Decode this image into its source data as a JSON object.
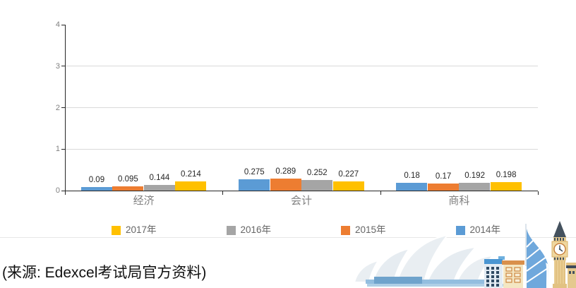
{
  "chart_data": {
    "type": "bar",
    "categories": [
      "经济",
      "会计",
      "商科"
    ],
    "series": [
      {
        "name": "2014年",
        "color": "#5B9BD5",
        "values": [
          0.09,
          0.275,
          0.18
        ],
        "labels": [
          "0.09",
          "0.275",
          "0.18"
        ]
      },
      {
        "name": "2015年",
        "color": "#ED7D31",
        "values": [
          0.095,
          0.289,
          0.17
        ],
        "labels": [
          "0.095",
          "0.289",
          "0.17"
        ]
      },
      {
        "name": "2016年",
        "color": "#A5A5A5",
        "values": [
          0.144,
          0.252,
          0.192
        ],
        "labels": [
          "0.144",
          "0.252",
          "0.192"
        ]
      },
      {
        "name": "2017年",
        "color": "#FFC000",
        "values": [
          0.214,
          0.227,
          0.198
        ],
        "labels": [
          "0.214",
          "0.227",
          "0.198"
        ]
      }
    ],
    "title": "",
    "xlabel": "",
    "ylabel": "",
    "ylim": [
      0,
      4
    ],
    "yticks": [
      0,
      1,
      2,
      3,
      4
    ],
    "grid": true,
    "data_labels": true,
    "legend_position": "bottom"
  },
  "legend": {
    "items": [
      {
        "label": "2017年",
        "color": "#FFC000"
      },
      {
        "label": "2016年",
        "color": "#A5A5A5"
      },
      {
        "label": "2015年",
        "color": "#ED7D31"
      },
      {
        "label": "2014年",
        "color": "#5B9BD5"
      }
    ]
  },
  "source_note": "(来源: Edexcel考试局官方资料)",
  "colors": {
    "axis": "#262626",
    "gridline": "#d9d9d9",
    "tick_label": "#808080",
    "category_label": "#808080",
    "data_label": "#262626",
    "legend_label": "#666666",
    "divider": "#e7e7e7"
  },
  "illustration": {
    "items": [
      "sydney-opera-house",
      "office-buildings",
      "burj-al-arab",
      "big-ben"
    ]
  }
}
